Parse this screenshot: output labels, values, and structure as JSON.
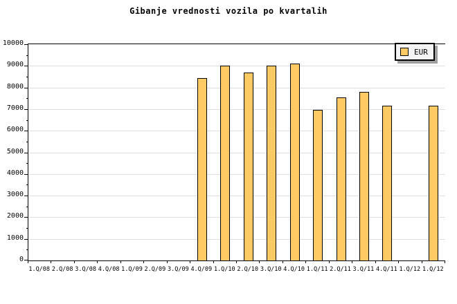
{
  "title": "Gibanje vrednosti vozila po kvartalih",
  "legend": {
    "label": "EUR"
  },
  "colors": {
    "background": "#FFFFFF",
    "text": "#000000",
    "axis": "#000000",
    "gridline": "#DDDDDD",
    "bar_fill": "#FFCA63",
    "bar_border": "#000000",
    "legend_bg": "#F4F4F4",
    "legend_shadow": "#A0A0A0"
  },
  "chart_data": {
    "type": "bar",
    "title": "Gibanje vrednosti vozila po kvartalih",
    "xlabel": "",
    "ylabel": "",
    "categories": [
      "1.Q/08",
      "2.Q/08",
      "3.Q/08",
      "4.Q/08",
      "1.Q/09",
      "2.Q/09",
      "3.Q/09",
      "4.Q/09",
      "1.Q/10",
      "2.Q/10",
      "3.Q/10",
      "4.Q/10",
      "1.Q/11",
      "2.Q/11",
      "3.Q/11",
      "4.Q/11",
      "1.Q/12",
      "1.Q/12"
    ],
    "series": [
      {
        "name": "EUR",
        "values": [
          null,
          null,
          null,
          null,
          null,
          null,
          null,
          8450,
          9000,
          8700,
          9000,
          9100,
          6950,
          7530,
          7800,
          7160,
          null,
          7160
        ]
      }
    ],
    "ylim": [
      0,
      10000
    ],
    "ytick_step": 1000,
    "ytick_minor_step": 500,
    "grid": "horizontal-major",
    "legend_position": "top-right"
  }
}
